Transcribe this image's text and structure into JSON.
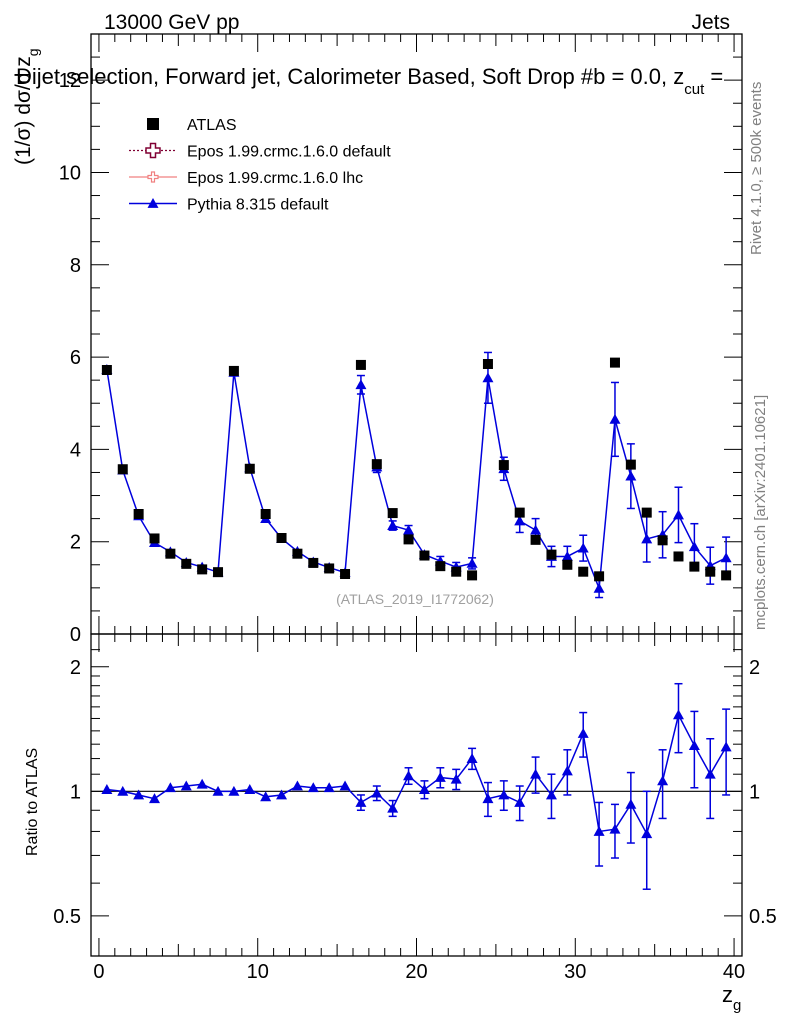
{
  "header": {
    "left": "13000 GeV pp",
    "right": "Jets"
  },
  "title": "Dijet selection, Forward jet, Calorimeter Based, Soft Drop #b = 0.0, z",
  "title_sub": "cut",
  "title_tail": " =",
  "ylabel_main": "(1/σ) dσ/d z",
  "ylabel_main_sub": "g",
  "ylabel_ratio": "Ratio to ATLAS",
  "xlabel": "z",
  "xlabel_sub": "g",
  "watermark": "(ATLAS_2019_I1772062)",
  "side_text_top": "Rivet 4.1.0, ≥ 500k events",
  "side_text_bottom": "mcplots.cern.ch [arXiv:2401.10621]",
  "colors": {
    "data": "#000000",
    "epos_default": "#800033",
    "epos_lhc": "#f08080",
    "pythia": "#0000dd"
  },
  "legend": [
    {
      "label": "ATLAS",
      "key": "data",
      "marker": "square"
    },
    {
      "label": "Epos 1.99.crmc.1.6.0 default",
      "key": "epos_default",
      "marker": "cross-open"
    },
    {
      "label": "Epos 1.99.crmc.1.6.0 lhc",
      "key": "epos_lhc",
      "marker": "cross-small"
    },
    {
      "label": "Pythia 8.315 default",
      "key": "pythia",
      "marker": "triangle"
    }
  ],
  "chart_data": {
    "type": "scatter",
    "x": [
      0.5,
      1.5,
      2.5,
      3.5,
      4.5,
      5.5,
      6.5,
      7.5,
      8.5,
      9.5,
      10.5,
      11.5,
      12.5,
      13.5,
      14.5,
      15.5,
      16.5,
      17.5,
      18.5,
      19.5,
      20.5,
      21.5,
      22.5,
      23.5,
      24.5,
      25.5,
      26.5,
      27.5,
      28.5,
      29.5,
      30.5,
      31.5,
      32.5,
      33.5,
      34.5,
      35.5,
      36.5,
      37.5,
      38.5,
      39.5
    ],
    "xlim": [
      -0.5,
      40.5
    ],
    "xticks": [
      0,
      10,
      20,
      30,
      40
    ],
    "main": {
      "ylim": [
        0,
        13
      ],
      "yticks": [
        0,
        2,
        4,
        6,
        8,
        10,
        12
      ],
      "series": [
        {
          "name": "ATLAS",
          "key": "data",
          "values": [
            5.72,
            3.57,
            2.6,
            2.07,
            1.74,
            1.52,
            1.4,
            1.34,
            5.7,
            3.58,
            2.6,
            2.08,
            1.74,
            1.54,
            1.42,
            1.3,
            5.83,
            3.68,
            2.62,
            2.05,
            1.7,
            1.47,
            1.35,
            1.27,
            5.85,
            3.66,
            2.63,
            2.04,
            1.72,
            1.5,
            1.35,
            1.25,
            5.88,
            3.67,
            2.63,
            2.03,
            1.68,
            1.46,
            1.35,
            1.27
          ]
        },
        {
          "name": "Pythia 8.315 default",
          "key": "pythia",
          "values": [
            5.73,
            3.55,
            2.56,
            1.98,
            1.78,
            1.55,
            1.45,
            1.34,
            5.67,
            3.6,
            2.5,
            2.07,
            1.79,
            1.56,
            1.44,
            1.33,
            5.4,
            3.62,
            2.35,
            2.25,
            1.72,
            1.58,
            1.45,
            1.53,
            5.55,
            3.58,
            2.45,
            2.25,
            1.68,
            1.68,
            1.86,
            0.99,
            4.65,
            3.42,
            2.06,
            2.15,
            2.58,
            1.89,
            1.48,
            1.65
          ],
          "err": [
            0.03,
            0.03,
            0.03,
            0.03,
            0.03,
            0.03,
            0.03,
            0.03,
            0.05,
            0.05,
            0.04,
            0.04,
            0.04,
            0.04,
            0.04,
            0.04,
            0.2,
            0.12,
            0.1,
            0.1,
            0.08,
            0.1,
            0.1,
            0.12,
            0.55,
            0.25,
            0.25,
            0.25,
            0.22,
            0.22,
            0.28,
            0.2,
            0.8,
            0.7,
            0.5,
            0.5,
            0.6,
            0.5,
            0.4,
            0.45
          ]
        }
      ]
    },
    "ratio": {
      "ylim": [
        0.4,
        2.4
      ],
      "log": true,
      "yticks": [
        0.5,
        1,
        2
      ],
      "series": [
        {
          "name": "Pythia 8.315 default",
          "key": "pythia",
          "values": [
            1.01,
            1.0,
            0.98,
            0.96,
            1.02,
            1.03,
            1.04,
            1.0,
            1.0,
            1.01,
            0.97,
            0.98,
            1.03,
            1.02,
            1.02,
            1.03,
            0.94,
            0.99,
            0.91,
            1.09,
            1.01,
            1.08,
            1.07,
            1.2,
            0.96,
            0.98,
            0.94,
            1.1,
            0.98,
            1.12,
            1.38,
            0.8,
            0.81,
            0.93,
            0.79,
            1.06,
            1.53,
            1.29,
            1.1,
            1.28
          ],
          "err": [
            0.01,
            0.01,
            0.01,
            0.01,
            0.01,
            0.01,
            0.01,
            0.01,
            0.01,
            0.01,
            0.01,
            0.01,
            0.01,
            0.01,
            0.01,
            0.02,
            0.04,
            0.04,
            0.04,
            0.05,
            0.05,
            0.06,
            0.06,
            0.07,
            0.09,
            0.08,
            0.09,
            0.11,
            0.12,
            0.14,
            0.17,
            0.14,
            0.12,
            0.18,
            0.21,
            0.2,
            0.29,
            0.27,
            0.24,
            0.3
          ]
        }
      ]
    }
  }
}
